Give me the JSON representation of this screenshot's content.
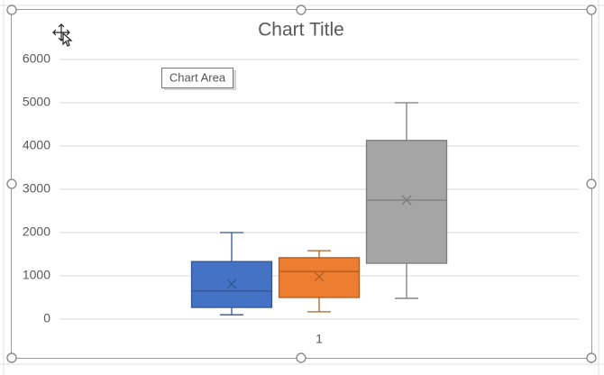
{
  "chart_data": {
    "type": "box",
    "title": "Chart Title",
    "categories": [
      "1"
    ],
    "tooltip": "Chart Area",
    "ylim": [
      0,
      6000
    ],
    "yticks": [
      0,
      1000,
      2000,
      3000,
      4000,
      5000,
      6000
    ],
    "grid": true,
    "series": [
      {
        "color": "#4472c4",
        "min": 100,
        "q1": 270,
        "median": 650,
        "q3": 1330,
        "max": 2000,
        "mean": 810
      },
      {
        "color": "#ed7d31",
        "min": 170,
        "q1": 500,
        "median": 1100,
        "q3": 1420,
        "max": 1580,
        "mean": 980
      },
      {
        "color": "#a5a5a5",
        "min": 480,
        "q1": 1290,
        "median": 2750,
        "q3": 4130,
        "max": 5000,
        "mean": 2750
      }
    ]
  }
}
